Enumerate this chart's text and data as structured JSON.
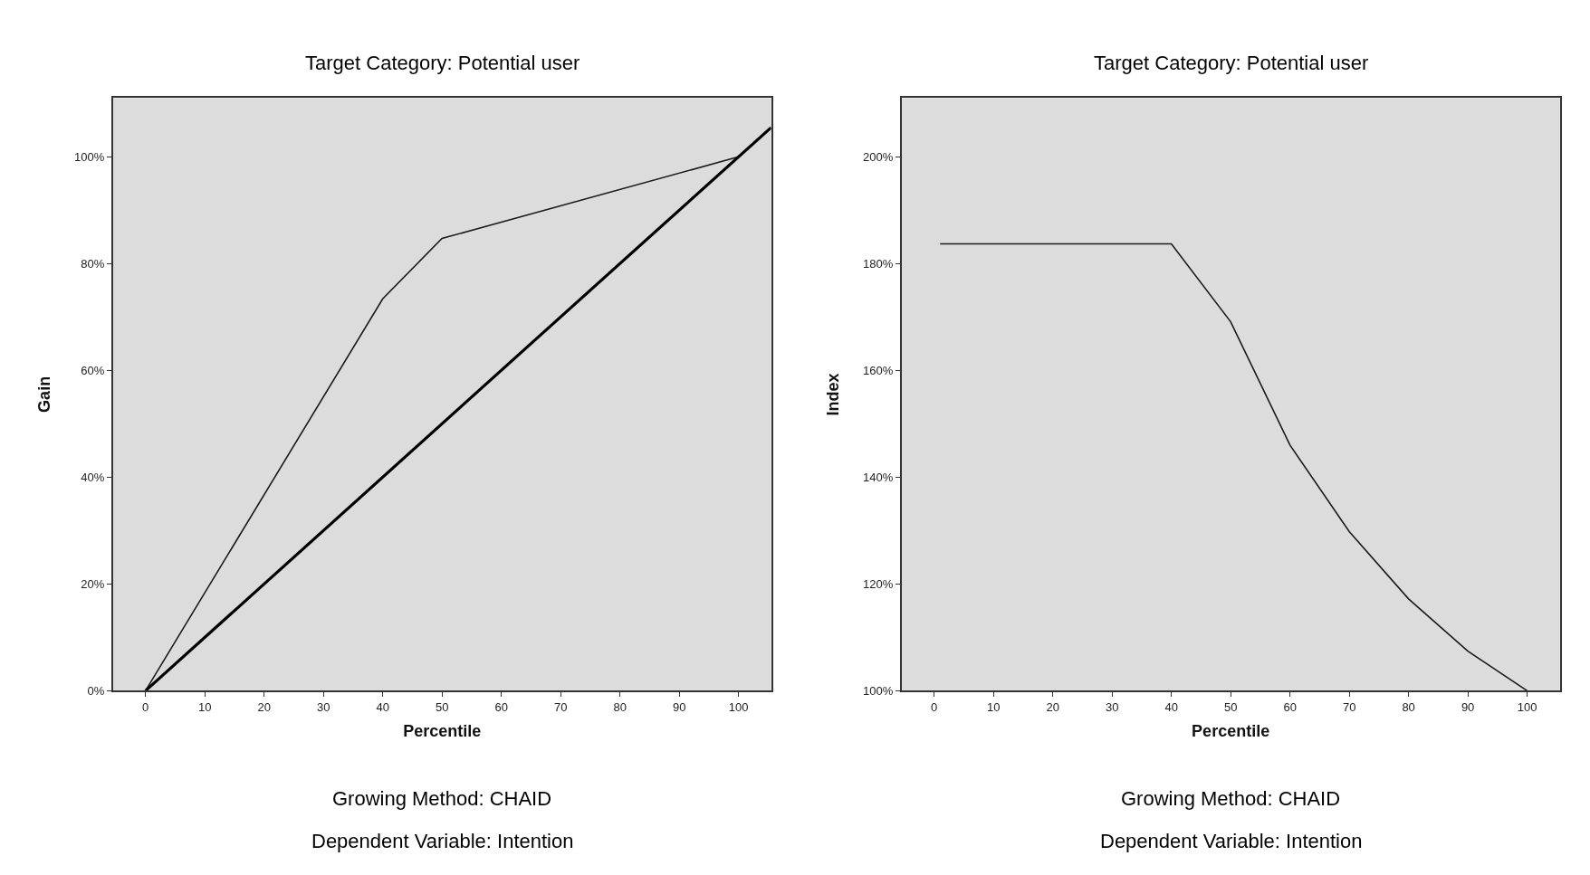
{
  "chart_data": [
    {
      "type": "line",
      "title": "Target Category: Potential user",
      "xlabel": "Percentile",
      "ylabel": "Gain",
      "annotations": [
        "Growing Method: CHAID",
        "Dependent Variable: Intention"
      ],
      "xlim": [
        -5.5,
        105.5
      ],
      "xticks": [
        0,
        10,
        20,
        30,
        40,
        50,
        60,
        70,
        80,
        90,
        100
      ],
      "ylim": [
        0,
        111
      ],
      "yticks": [
        {
          "value": 0,
          "label": "0%"
        },
        {
          "value": 20,
          "label": "20%"
        },
        {
          "value": 40,
          "label": "40%"
        },
        {
          "value": 60,
          "label": "60%"
        },
        {
          "value": 80,
          "label": "80%"
        },
        {
          "value": 100,
          "label": "100%"
        }
      ],
      "grid": false,
      "marker": "none",
      "series": [
        {
          "color": "#1a1a1a",
          "x": [
            0,
            40,
            50,
            100
          ],
          "values": [
            0,
            73.4,
            84.7,
            100
          ]
        },
        {
          "color": "#000000",
          "x": [
            0,
            105.5
          ],
          "values": [
            0,
            105.5
          ]
        }
      ]
    },
    {
      "type": "line",
      "title": "Target Category: Potential user",
      "xlabel": "Percentile",
      "ylabel": "Index",
      "annotations": [
        "Growing Method: CHAID",
        "Dependent Variable: Intention"
      ],
      "xlim": [
        -5.5,
        105.5
      ],
      "xticks": [
        0,
        10,
        20,
        30,
        40,
        50,
        60,
        70,
        80,
        90,
        100
      ],
      "ylim": [
        100,
        211
      ],
      "yticks": [
        {
          "value": 100,
          "label": "100%"
        },
        {
          "value": 120,
          "label": "120%"
        },
        {
          "value": 140,
          "label": "140%"
        },
        {
          "value": 160,
          "label": "160%"
        },
        {
          "value": 180,
          "label": "180%"
        },
        {
          "value": 200,
          "label": "200%"
        }
      ],
      "grid": false,
      "marker": "none",
      "series": [
        {
          "color": "#1a1a1a",
          "x": [
            1,
            40,
            50,
            60,
            70,
            80,
            90,
            100
          ],
          "values": [
            183.7,
            183.7,
            169.1,
            146.0,
            129.8,
            117.2,
            107.4,
            100
          ]
        }
      ]
    }
  ]
}
